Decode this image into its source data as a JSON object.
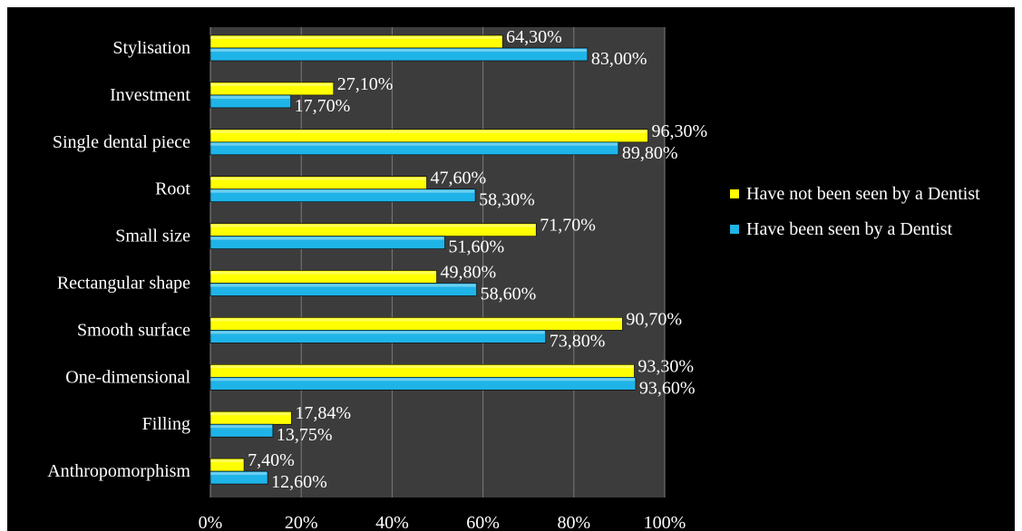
{
  "chart_data": {
    "type": "bar",
    "orientation": "horizontal",
    "categories": [
      "Stylisation",
      "Investment",
      "Single dental piece",
      "Root",
      "Small size",
      "Rectangular shape",
      "Smooth surface",
      "One-dimensional",
      "Filling",
      "Anthropomorphism"
    ],
    "series": [
      {
        "name": "Have not been seen by a Dentist",
        "color": "#ffff00",
        "values": [
          64.3,
          27.1,
          96.3,
          47.6,
          71.7,
          49.8,
          90.7,
          93.3,
          17.84,
          7.4
        ],
        "labels": [
          "64,30%",
          "27,10%",
          "96,30%",
          "47,60%",
          "71,70%",
          "49,80%",
          "90,70%",
          "93,30%",
          "17,84%",
          "7,40%"
        ]
      },
      {
        "name": "Have been seen by a Dentist",
        "color": "#1fb4e8",
        "values": [
          83.0,
          17.7,
          89.8,
          58.3,
          51.6,
          58.6,
          73.8,
          93.6,
          13.75,
          12.6
        ],
        "labels": [
          "83,00%",
          "17,70%",
          "89,80%",
          "58,30%",
          "51,60%",
          "58,60%",
          "73,80%",
          "93,60%",
          "13,75%",
          "12,60%"
        ]
      }
    ],
    "xticks": [
      "0%",
      "20%",
      "40%",
      "60%",
      "80%",
      "100%"
    ],
    "xlim": [
      0,
      100
    ],
    "grid": true,
    "legend_position": "right",
    "plot_background": "#3c3c3c",
    "page_background": "#000000"
  }
}
